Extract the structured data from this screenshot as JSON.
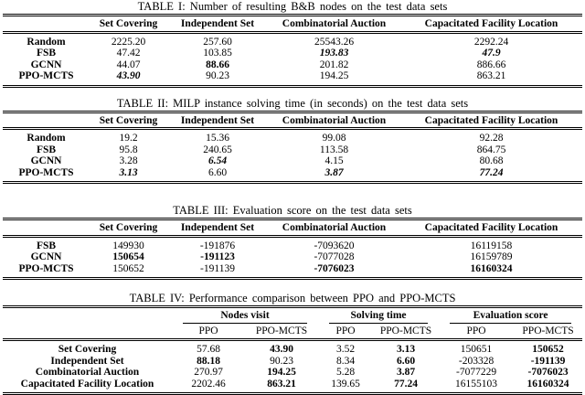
{
  "page": {
    "background": "#ffffff",
    "text_color": "#000000"
  },
  "tables": [
    {
      "caption": "TABLE I: Number of resulting B&B nodes on the test data sets",
      "columns": [
        "Set Covering",
        "Independent Set",
        "Combinatorial Auction",
        "Capacitated Facility Location"
      ],
      "rows": [
        {
          "label": "Random",
          "cells": [
            {
              "t": "2225.20",
              "s": ""
            },
            {
              "t": "257.60",
              "s": ""
            },
            {
              "t": "25543.26",
              "s": ""
            },
            {
              "t": "2292.24",
              "s": ""
            }
          ]
        },
        {
          "label": "FSB",
          "cells": [
            {
              "t": "47.42",
              "s": ""
            },
            {
              "t": "103.85",
              "s": ""
            },
            {
              "t": "193.83",
              "s": "bi"
            },
            {
              "t": "47.9",
              "s": "bi"
            }
          ]
        },
        {
          "label": "GCNN",
          "cells": [
            {
              "t": "44.07",
              "s": ""
            },
            {
              "t": "88.66",
              "s": "b"
            },
            {
              "t": "201.82",
              "s": ""
            },
            {
              "t": "886.66",
              "s": ""
            }
          ]
        },
        {
          "label": "PPO-MCTS",
          "cells": [
            {
              "t": "43.90",
              "s": "bi"
            },
            {
              "t": "90.23",
              "s": ""
            },
            {
              "t": "194.25",
              "s": ""
            },
            {
              "t": "863.21",
              "s": ""
            }
          ]
        }
      ]
    },
    {
      "caption": "TABLE II: MILP instance solving time (in seconds) on the test data sets",
      "columns": [
        "Set Covering",
        "Independent Set",
        "Combinatorial Auction",
        "Capacitated Facility Location"
      ],
      "rows": [
        {
          "label": "Random",
          "cells": [
            {
              "t": "19.2",
              "s": ""
            },
            {
              "t": "15.36",
              "s": ""
            },
            {
              "t": "99.08",
              "s": ""
            },
            {
              "t": "92.28",
              "s": ""
            }
          ]
        },
        {
          "label": "FSB",
          "cells": [
            {
              "t": "95.8",
              "s": ""
            },
            {
              "t": "240.65",
              "s": ""
            },
            {
              "t": "113.58",
              "s": ""
            },
            {
              "t": "864.75",
              "s": ""
            }
          ]
        },
        {
          "label": "GCNN",
          "cells": [
            {
              "t": "3.28",
              "s": ""
            },
            {
              "t": "6.54",
              "s": "bi"
            },
            {
              "t": "4.15",
              "s": ""
            },
            {
              "t": "80.68",
              "s": ""
            }
          ]
        },
        {
          "label": "PPO-MCTS",
          "cells": [
            {
              "t": "3.13",
              "s": "bi"
            },
            {
              "t": "6.60",
              "s": ""
            },
            {
              "t": "3.87",
              "s": "bi"
            },
            {
              "t": "77.24",
              "s": "bi"
            }
          ]
        }
      ]
    },
    {
      "caption": "TABLE III: Evaluation score on the test data sets",
      "columns": [
        "Set Covering",
        "Independent Set",
        "Combinatorial Auction",
        "Capacitated Facility Location"
      ],
      "rows": [
        {
          "label": "FSB",
          "cells": [
            {
              "t": "149930",
              "s": ""
            },
            {
              "t": "-191876",
              "s": ""
            },
            {
              "t": "-7093620",
              "s": ""
            },
            {
              "t": "16119158",
              "s": ""
            }
          ]
        },
        {
          "label": "GCNN",
          "cells": [
            {
              "t": "150654",
              "s": "b"
            },
            {
              "t": "-191123",
              "s": "b"
            },
            {
              "t": "-7077028",
              "s": ""
            },
            {
              "t": "16159789",
              "s": ""
            }
          ]
        },
        {
          "label": "PPO-MCTS",
          "cells": [
            {
              "t": "150652",
              "s": ""
            },
            {
              "t": "-191139",
              "s": ""
            },
            {
              "t": "-7076023",
              "s": "b"
            },
            {
              "t": "16160324",
              "s": "b"
            }
          ]
        }
      ]
    },
    {
      "caption": "TABLE IV: Performance comparison between PPO and PPO-MCTS",
      "groups": [
        "Nodes visit",
        "Solving time",
        "Evaluation score"
      ],
      "subcolumns": [
        "PPO",
        "PPO-MCTS",
        "PPO",
        "PPO-MCTS",
        "PPO",
        "PPO-MCTS"
      ],
      "rows": [
        {
          "label": "Set Covering",
          "cells": [
            {
              "t": "57.68",
              "s": ""
            },
            {
              "t": "43.90",
              "s": "b"
            },
            {
              "t": "3.52",
              "s": ""
            },
            {
              "t": "3.13",
              "s": "b"
            },
            {
              "t": "150651",
              "s": ""
            },
            {
              "t": "150652",
              "s": "b"
            }
          ]
        },
        {
          "label": "Independent Set",
          "cells": [
            {
              "t": "88.18",
              "s": "b"
            },
            {
              "t": "90.23",
              "s": ""
            },
            {
              "t": "8.34",
              "s": ""
            },
            {
              "t": "6.60",
              "s": "b"
            },
            {
              "t": "-203328",
              "s": ""
            },
            {
              "t": "-191139",
              "s": "b"
            }
          ]
        },
        {
          "label": "Combinatorial Auction",
          "cells": [
            {
              "t": "270.97",
              "s": ""
            },
            {
              "t": "194.25",
              "s": "b"
            },
            {
              "t": "5.28",
              "s": ""
            },
            {
              "t": "3.87",
              "s": "b"
            },
            {
              "t": "-7077229",
              "s": ""
            },
            {
              "t": "-7076023",
              "s": "b"
            }
          ]
        },
        {
          "label": "Capacitated Facility Location",
          "cells": [
            {
              "t": "2202.46",
              "s": ""
            },
            {
              "t": "863.21",
              "s": "b"
            },
            {
              "t": "139.65",
              "s": ""
            },
            {
              "t": "77.24",
              "s": "b"
            },
            {
              "t": "16155103",
              "s": ""
            },
            {
              "t": "16160324",
              "s": "b"
            }
          ]
        }
      ]
    }
  ]
}
